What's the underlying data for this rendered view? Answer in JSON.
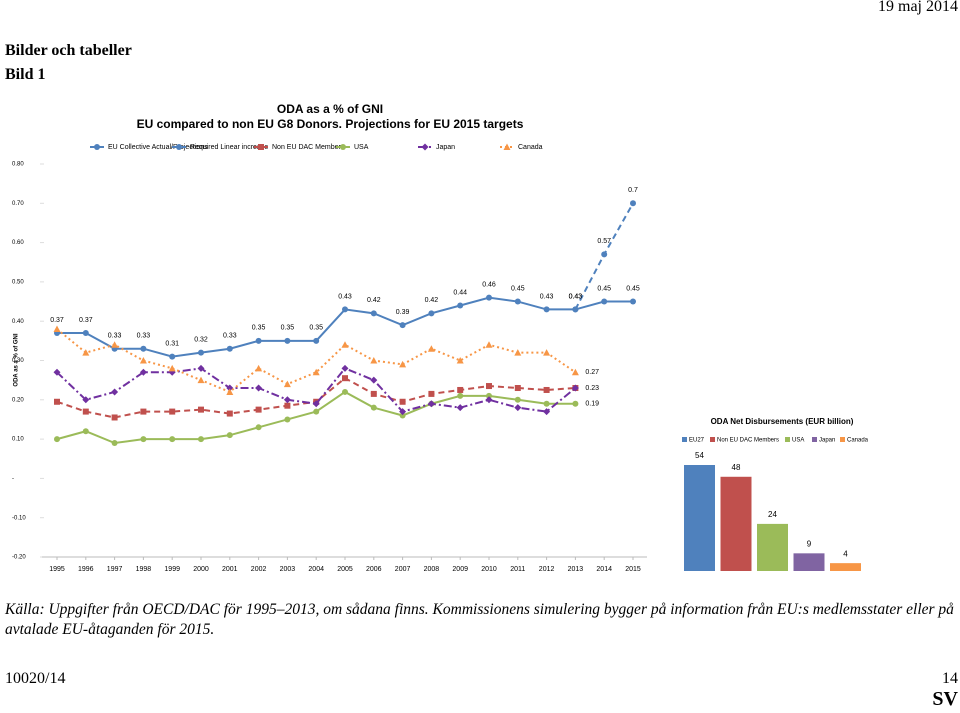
{
  "header": {
    "date": "19 maj 2014",
    "section": "Bilder och tabeller",
    "figure": "Bild 1"
  },
  "chart_data": [
    {
      "type": "line",
      "title": "ODA as a % of GNI",
      "subtitle": "EU compared to non EU G8 Donors.  Projections for EU 2015 targets",
      "y_label": "ODA as a % of GNI",
      "x": [
        1995,
        1996,
        1997,
        1998,
        1999,
        2000,
        2001,
        2002,
        2003,
        2004,
        2005,
        2006,
        2007,
        2008,
        2009,
        2010,
        2011,
        2012,
        2013,
        2014,
        2015
      ],
      "xticks": [
        1995,
        1996,
        1997,
        1998,
        1999,
        2000,
        2001,
        2002,
        2003,
        2004,
        2005,
        2006,
        2007,
        2008,
        2009,
        2010,
        2011,
        2012,
        2013,
        2014,
        2015
      ],
      "xlim": [
        1995,
        2015
      ],
      "ylim": [
        -0.2,
        0.8
      ],
      "yticks": [
        {
          "value": 0.8,
          "label": "0.80"
        },
        {
          "value": 0.7,
          "label": "0.70"
        },
        {
          "value": 0.6,
          "label": "0.60"
        },
        {
          "value": 0.5,
          "label": "0.50"
        },
        {
          "value": 0.4,
          "label": "0.40"
        },
        {
          "value": 0.3,
          "label": "0.30"
        },
        {
          "value": 0.2,
          "label": "0.20"
        },
        {
          "value": 0.1,
          "label": "0.10"
        },
        {
          "value": 0,
          "label": "-"
        },
        {
          "value": -0.1,
          "label": "-0.10"
        },
        {
          "value": -0.2,
          "label": "-0.20"
        }
      ],
      "series": [
        {
          "name": "EU Collective Actual/Projections",
          "color": "#4f81bd",
          "marker": "circle",
          "dash": "none",
          "data_labels": "all",
          "values": [
            0.37,
            0.37,
            0.33,
            0.33,
            0.31,
            0.32,
            0.33,
            0.35,
            0.35,
            0.35,
            0.43,
            0.42,
            0.39,
            0.42,
            0.44,
            0.46,
            0.45,
            0.43,
            0.43,
            0.45,
            0.45
          ]
        },
        {
          "name": "Required Linear increase",
          "color": "#4f81bd",
          "marker": "circle",
          "dash": "6 4",
          "data_labels": "all",
          "values": [
            null,
            null,
            null,
            null,
            null,
            null,
            null,
            null,
            null,
            null,
            null,
            null,
            null,
            null,
            null,
            null,
            null,
            null,
            0.43,
            0.57,
            0.7
          ]
        },
        {
          "name": "Non EU DAC Members",
          "color": "#c0504d",
          "marker": "square",
          "dash": "6 4",
          "data_labels": "none",
          "values": [
            0.195,
            0.17,
            0.155,
            0.17,
            0.17,
            0.175,
            0.165,
            0.175,
            0.185,
            0.195,
            0.255,
            0.215,
            0.195,
            0.215,
            0.225,
            0.235,
            0.23,
            0.225,
            0.23,
            null,
            null
          ]
        },
        {
          "name": "USA",
          "color": "#9bbb59",
          "marker": "circle",
          "dash": "none",
          "data_labels": "last",
          "values": [
            0.1,
            0.12,
            0.09,
            0.1,
            0.1,
            0.1,
            0.11,
            0.13,
            0.15,
            0.17,
            0.22,
            0.18,
            0.16,
            0.19,
            0.21,
            0.21,
            0.2,
            0.19,
            0.19,
            null,
            null
          ]
        },
        {
          "name": "Japan",
          "color": "#7030a0",
          "marker": "diamond",
          "dash": "8 3 2 3",
          "data_labels": "last",
          "values": [
            0.27,
            0.2,
            0.22,
            0.27,
            0.27,
            0.28,
            0.23,
            0.23,
            0.2,
            0.19,
            0.28,
            0.25,
            0.17,
            0.19,
            0.18,
            0.2,
            0.18,
            0.17,
            0.23,
            null,
            null
          ]
        },
        {
          "name": "Canada",
          "color": "#f79646",
          "marker": "triangle",
          "dash": "2 3",
          "data_labels": "last",
          "values": [
            0.38,
            0.32,
            0.34,
            0.3,
            0.28,
            0.25,
            0.22,
            0.28,
            0.24,
            0.27,
            0.34,
            0.3,
            0.29,
            0.33,
            0.3,
            0.34,
            0.32,
            0.32,
            0.27,
            null,
            null
          ]
        }
      ]
    },
    {
      "type": "bar",
      "title": "ODA Net Disbursements (EUR billion)",
      "categories": [
        "EU27",
        "Non EU DAC Members",
        "USA",
        "Japan",
        "Canada"
      ],
      "values": [
        54,
        48,
        24,
        9,
        4
      ],
      "colors": [
        "#4f81bd",
        "#c0504d",
        "#9bbb59",
        "#8064a2",
        "#f79646"
      ]
    }
  ],
  "caption": "Källa: Uppgifter från OECD/DAC för 1995–2013, om sådana finns. Kommissionens simulering bygger på information från EU:s medlemsstater eller på avtalade EU-åtaganden för 2015.",
  "footer": {
    "doc": "10020/14",
    "page": "14",
    "lang": "SV"
  }
}
